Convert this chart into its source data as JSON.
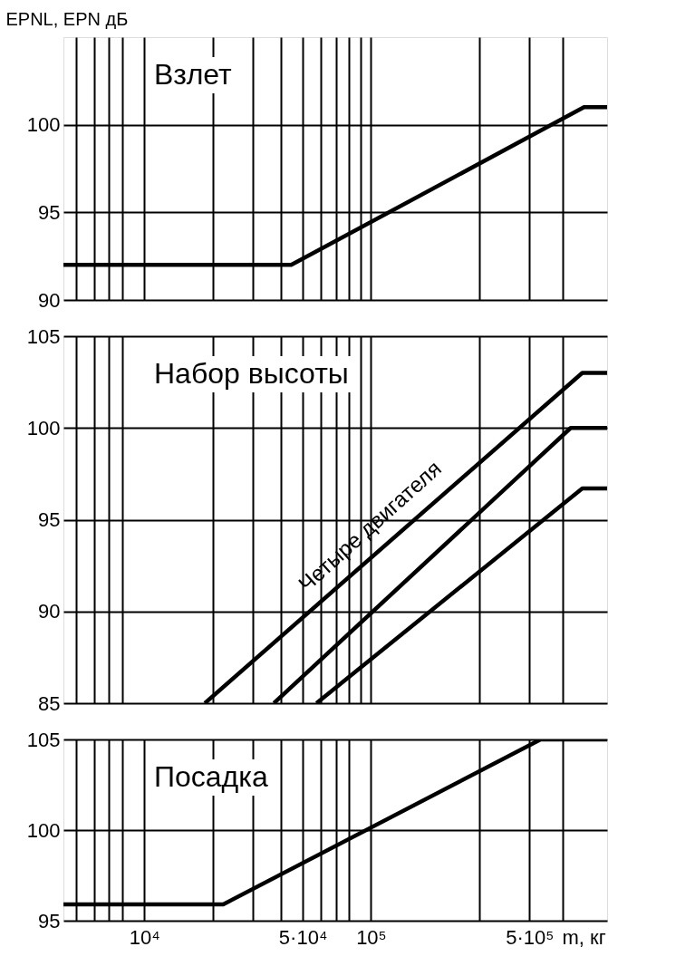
{
  "chart_data": [
    {
      "type": "line",
      "ylabel": "EPNL, EPN дБ",
      "log": "x",
      "grid": true,
      "tick_labels": "y",
      "annotations": [
        "Взлет"
      ],
      "xlim": [
        4400,
        1100000
      ],
      "ylim": [
        90,
        105
      ],
      "yticks": [
        90,
        95,
        100
      ],
      "xticks": [
        {
          "value": 5000,
          "label": null
        },
        {
          "value": 6000,
          "label": null
        },
        {
          "value": 7000,
          "label": null
        },
        {
          "value": 8000,
          "label": null
        },
        {
          "value": 10000,
          "label": null
        },
        {
          "value": 20000,
          "label": null
        },
        {
          "value": 30000,
          "label": null
        },
        {
          "value": 40000,
          "label": null
        },
        {
          "value": 50000,
          "label": null
        },
        {
          "value": 60000,
          "label": null
        },
        {
          "value": 70000,
          "label": null
        },
        {
          "value": 80000,
          "label": null
        },
        {
          "value": 90000,
          "label": null
        },
        {
          "value": 100000,
          "label": null
        },
        {
          "value": 300000,
          "label": null
        },
        {
          "value": 500000,
          "label": null
        },
        {
          "value": 700000,
          "label": null
        }
      ],
      "series": [
        {
          "color": "#000000",
          "x": [
            4400,
            44500,
            870000,
            1100000
          ],
          "values": [
            92,
            92,
            101,
            101
          ]
        }
      ]
    },
    {
      "type": "line",
      "log": "x",
      "grid": true,
      "tick_labels": "y",
      "annotations": [
        "Набор высоты",
        "Четыре двигателя"
      ],
      "xlim": [
        4400,
        1100000
      ],
      "ylim": [
        85,
        105
      ],
      "yticks": [
        85,
        90,
        95,
        100,
        105
      ],
      "xticks": [
        {
          "value": 5000,
          "label": null
        },
        {
          "value": 6000,
          "label": null
        },
        {
          "value": 7000,
          "label": null
        },
        {
          "value": 8000,
          "label": null
        },
        {
          "value": 20000,
          "label": null
        },
        {
          "value": 30000,
          "label": null
        },
        {
          "value": 40000,
          "label": null
        },
        {
          "value": 50000,
          "label": null
        },
        {
          "value": 60000,
          "label": null
        },
        {
          "value": 70000,
          "label": null
        },
        {
          "value": 80000,
          "label": null
        },
        {
          "value": 90000,
          "label": null
        },
        {
          "value": 100000,
          "label": null
        },
        {
          "value": 300000,
          "label": null
        },
        {
          "value": 500000,
          "label": null
        },
        {
          "value": 700000,
          "label": null
        }
      ],
      "series": [
        {
          "color": "#000000",
          "x": [
            18500,
            855000,
            1100000
          ],
          "values": [
            85,
            103,
            103
          ]
        },
        {
          "color": "#000000",
          "x": [
            37300,
            760000,
            1100000
          ],
          "values": [
            85,
            100,
            100
          ]
        },
        {
          "color": "#000000",
          "x": [
            57500,
            855000,
            1100000
          ],
          "values": [
            85,
            96.7,
            96.7
          ]
        }
      ]
    },
    {
      "type": "line",
      "xlabel": "m, кг",
      "log": "x",
      "grid": true,
      "annotations": [
        "Посадка"
      ],
      "xlim": [
        4400,
        1100000
      ],
      "ylim": [
        95,
        105
      ],
      "yticks": [
        95,
        100,
        105
      ],
      "xticks": [
        {
          "value": 5000,
          "label": null
        },
        {
          "value": 6000,
          "label": null
        },
        {
          "value": 7000,
          "label": null
        },
        {
          "value": 8000,
          "label": null
        },
        {
          "value": 10000,
          "label": "10⁴"
        },
        {
          "value": 20000,
          "label": null
        },
        {
          "value": 30000,
          "label": null
        },
        {
          "value": 40000,
          "label": null
        },
        {
          "value": 50000,
          "label": "5·10⁴"
        },
        {
          "value": 60000,
          "label": null
        },
        {
          "value": 70000,
          "label": null
        },
        {
          "value": 80000,
          "label": null
        },
        {
          "value": 100000,
          "label": "10⁵"
        },
        {
          "value": 300000,
          "label": null
        },
        {
          "value": 500000,
          "label": "5·10⁵"
        },
        {
          "value": 700000,
          "label": null
        }
      ],
      "series": [
        {
          "color": "#000000",
          "x": [
            4400,
            22300,
            560000,
            1100000
          ],
          "values": [
            95.9,
            95.9,
            105,
            105
          ]
        }
      ]
    }
  ]
}
